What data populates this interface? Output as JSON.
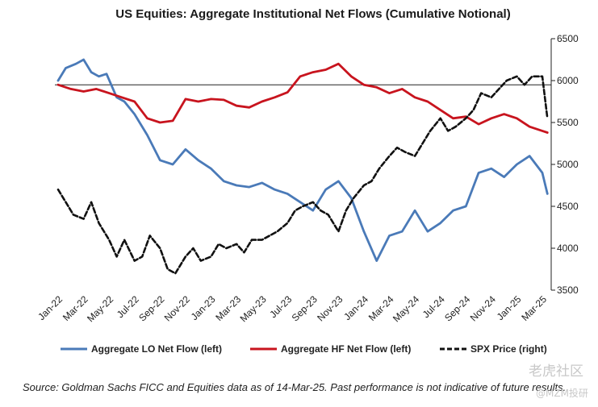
{
  "chart_data": {
    "type": "line",
    "title": "US Equities: Aggregate Institutional Net Flows (Cumulative Notional)",
    "x_tick_labels": [
      "Jan-22",
      "Mar-22",
      "May-22",
      "Jul-22",
      "Sep-22",
      "Nov-22",
      "Jan-23",
      "Mar-23",
      "May-23",
      "Jul-23",
      "Sep-23",
      "Nov-23",
      "Jan-24",
      "Mar-24",
      "May-24",
      "Jul-24",
      "Sep-24",
      "Nov-24",
      "Jan-25",
      "Mar-25"
    ],
    "right_axis": {
      "ticks": [
        "3500",
        "4000",
        "4500",
        "5000",
        "5500",
        "6000",
        "6500"
      ],
      "min": 3500,
      "max": 6500,
      "reference_line": 5950
    },
    "grid": false,
    "legend_position": "bottom",
    "series": [
      {
        "name": "Aggregate LO Net Flow (left)",
        "axis": "left-unlabeled",
        "color": "#4a7ab8",
        "style": "solid",
        "x_index": [
          0,
          0.3,
          0.7,
          1,
          1.3,
          1.6,
          1.9,
          2.3,
          2.6,
          3,
          3.5,
          4,
          4.5,
          5,
          5.5,
          6,
          6.5,
          7,
          7.5,
          8,
          8.5,
          9,
          9.5,
          10,
          10.5,
          11,
          11.5,
          12,
          12.5,
          13,
          13.5,
          14,
          14.5,
          15,
          15.5,
          16,
          16.5,
          17,
          17.5,
          18,
          18.5,
          19,
          19.2
        ],
        "values": [
          6000,
          6150,
          6200,
          6250,
          6100,
          6050,
          6080,
          5800,
          5750,
          5600,
          5350,
          5050,
          5000,
          5180,
          5050,
          4950,
          4800,
          4750,
          4730,
          4780,
          4700,
          4650,
          4550,
          4450,
          4700,
          4800,
          4600,
          4200,
          3850,
          4150,
          4200,
          4450,
          4200,
          4300,
          4450,
          4500,
          4900,
          4950,
          4850,
          5000,
          5100,
          4900,
          4650
        ]
      },
      {
        "name": "Aggregate HF Net Flow (left)",
        "axis": "left-unlabeled",
        "color": "#c8141e",
        "style": "solid",
        "x_index": [
          0,
          0.5,
          1,
          1.5,
          2,
          2.5,
          3,
          3.5,
          4,
          4.5,
          5,
          5.5,
          6,
          6.5,
          7,
          7.5,
          8,
          8.5,
          9,
          9.5,
          10,
          10.5,
          11,
          11.5,
          12,
          12.5,
          13,
          13.5,
          14,
          14.5,
          15,
          15.5,
          16,
          16.5,
          17,
          17.5,
          18,
          18.5,
          19,
          19.2
        ],
        "values": [
          5950,
          5900,
          5870,
          5900,
          5850,
          5800,
          5750,
          5550,
          5500,
          5520,
          5780,
          5750,
          5780,
          5770,
          5700,
          5680,
          5750,
          5800,
          5860,
          6050,
          6100,
          6130,
          6200,
          6050,
          5950,
          5920,
          5850,
          5900,
          5800,
          5750,
          5650,
          5550,
          5570,
          5480,
          5550,
          5600,
          5550,
          5450,
          5400,
          5380
        ]
      },
      {
        "name": "SPX Price (right)",
        "axis": "right",
        "color": "#111111",
        "style": "dashed",
        "x_index": [
          0,
          0.3,
          0.6,
          1,
          1.3,
          1.6,
          2,
          2.3,
          2.6,
          3,
          3.3,
          3.6,
          4,
          4.3,
          4.6,
          5,
          5.3,
          5.6,
          6,
          6.3,
          6.6,
          7,
          7.3,
          7.6,
          8,
          8.3,
          8.6,
          9,
          9.3,
          9.6,
          10,
          10.3,
          10.6,
          11,
          11.3,
          11.6,
          12,
          12.3,
          12.6,
          13,
          13.3,
          13.6,
          14,
          14.3,
          14.6,
          15,
          15.3,
          15.6,
          16,
          16.3,
          16.6,
          17,
          17.3,
          17.6,
          18,
          18.3,
          18.6,
          19,
          19.2
        ],
        "values": [
          4700,
          4550,
          4400,
          4350,
          4550,
          4300,
          4100,
          3900,
          4100,
          3850,
          3900,
          4150,
          4000,
          3750,
          3700,
          3900,
          4000,
          3850,
          3900,
          4050,
          4000,
          4050,
          3950,
          4100,
          4100,
          4150,
          4200,
          4300,
          4450,
          4500,
          4550,
          4450,
          4400,
          4200,
          4450,
          4600,
          4750,
          4800,
          4950,
          5100,
          5200,
          5150,
          5100,
          5250,
          5400,
          5550,
          5400,
          5450,
          5550,
          5650,
          5850,
          5800,
          5900,
          6000,
          6050,
          5950,
          6050,
          6050,
          5550
        ]
      }
    ]
  },
  "legend": {
    "lo": "Aggregate LO Net Flow (left)",
    "hf": "Aggregate HF Net Flow (left)",
    "spx": "SPX Price (right)"
  },
  "source": "Source: Goldman Sachs FICC and Equities data as of 14-Mar-25. Past performance is not indicative of future results.",
  "watermark": {
    "line1": "老虎社区",
    "line2": "@MZM投研"
  }
}
